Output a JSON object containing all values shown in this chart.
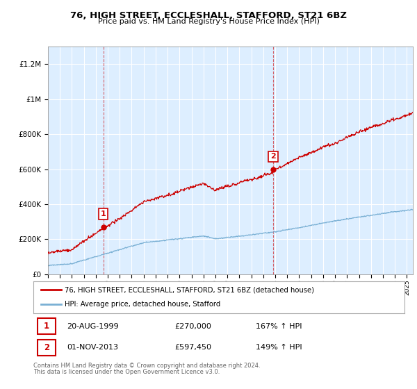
{
  "title": "76, HIGH STREET, ECCLESHALL, STAFFORD, ST21 6BZ",
  "subtitle": "Price paid vs. HM Land Registry's House Price Index (HPI)",
  "sale1_date": "20-AUG-1999",
  "sale1_price": 270000,
  "sale1_label": "167% ↑ HPI",
  "sale1_year": 1999.63,
  "sale2_date": "01-NOV-2013",
  "sale2_price": 597450,
  "sale2_label": "149% ↑ HPI",
  "sale2_year": 2013.83,
  "legend_line1": "76, HIGH STREET, ECCLESHALL, STAFFORD, ST21 6BZ (detached house)",
  "legend_line2": "HPI: Average price, detached house, Stafford",
  "footer1": "Contains HM Land Registry data © Crown copyright and database right 2024.",
  "footer2": "This data is licensed under the Open Government Licence v3.0.",
  "red_color": "#cc0000",
  "blue_color": "#7ab0d4",
  "background_color": "#ddeeff",
  "ylim": [
    0,
    1300000
  ],
  "xlim_start": 1995,
  "xlim_end": 2025.5
}
